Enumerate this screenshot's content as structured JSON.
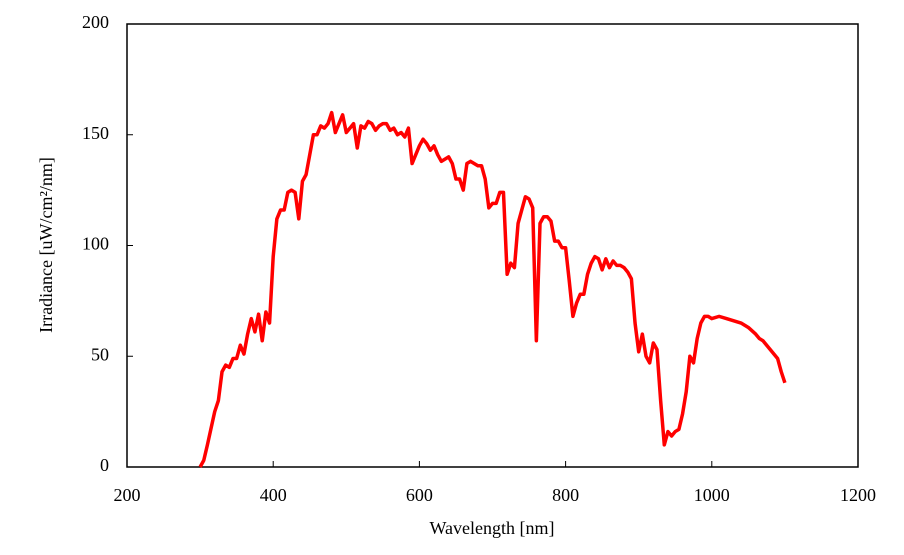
{
  "chart_data": {
    "type": "line",
    "xlabel": "Wavelength [nm]",
    "ylabel": "Irradiance [uW/cm²/nm]",
    "x": [
      300,
      305,
      310,
      320,
      325,
      330,
      335,
      340,
      345,
      350,
      355,
      360,
      365,
      370,
      375,
      380,
      385,
      390,
      395,
      400,
      405,
      410,
      415,
      420,
      425,
      430,
      435,
      440,
      445,
      450,
      455,
      460,
      465,
      470,
      475,
      480,
      485,
      490,
      495,
      500,
      505,
      510,
      515,
      520,
      525,
      530,
      535,
      540,
      545,
      550,
      555,
      560,
      565,
      570,
      575,
      580,
      585,
      590,
      595,
      600,
      605,
      610,
      615,
      620,
      625,
      630,
      635,
      640,
      645,
      650,
      655,
      660,
      665,
      670,
      680,
      685,
      690,
      695,
      700,
      705,
      710,
      715,
      720,
      725,
      730,
      735,
      740,
      745,
      750,
      755,
      760,
      765,
      770,
      775,
      780,
      785,
      790,
      795,
      800,
      805,
      810,
      815,
      820,
      825,
      830,
      835,
      840,
      845,
      850,
      855,
      860,
      865,
      870,
      875,
      880,
      885,
      890,
      895,
      900,
      905,
      910,
      915,
      920,
      925,
      930,
      935,
      940,
      945,
      950,
      955,
      960,
      965,
      970,
      975,
      980,
      985,
      990,
      995,
      1000,
      1010,
      1020,
      1030,
      1040,
      1050,
      1060,
      1065,
      1070,
      1080,
      1090,
      1095,
      1100
    ],
    "values": [
      0,
      3,
      10,
      25,
      30,
      43,
      46,
      45,
      49,
      49,
      55,
      51,
      60,
      67,
      61,
      69,
      57,
      70,
      65,
      95,
      112,
      116,
      116,
      124,
      125,
      124,
      112,
      129,
      132,
      141,
      150,
      150,
      154,
      153,
      155,
      160,
      151,
      155,
      159,
      151,
      153,
      155,
      144,
      154,
      153,
      156,
      155,
      152,
      154,
      155,
      155,
      152,
      153,
      150,
      151,
      149,
      153,
      137,
      141,
      145,
      148,
      146,
      143,
      145,
      141,
      138,
      139,
      140,
      137,
      130,
      130,
      125,
      137,
      138,
      136,
      136,
      130,
      117,
      119,
      119,
      124,
      124,
      87,
      92,
      90,
      110,
      116,
      122,
      121,
      117,
      57,
      110,
      113,
      113,
      111,
      102,
      102,
      99,
      99,
      84,
      68,
      74,
      78,
      78,
      87,
      92,
      95,
      94,
      89,
      94,
      90,
      93,
      91,
      91,
      90,
      88,
      85,
      65,
      52,
      60,
      50,
      47,
      56,
      53,
      30,
      10,
      16,
      14,
      16,
      17,
      24,
      34,
      50,
      47,
      58,
      65,
      68,
      68,
      67,
      68,
      67,
      66,
      65,
      63,
      60,
      58,
      57,
      53,
      49,
      43,
      38
    ],
    "color": "#ff0000",
    "xlim": [
      200,
      1200
    ],
    "xticks": [
      200,
      400,
      600,
      800,
      1000,
      1200
    ],
    "ylim": [
      0,
      200
    ],
    "yticks": [
      0,
      50,
      100,
      150,
      200
    ]
  }
}
